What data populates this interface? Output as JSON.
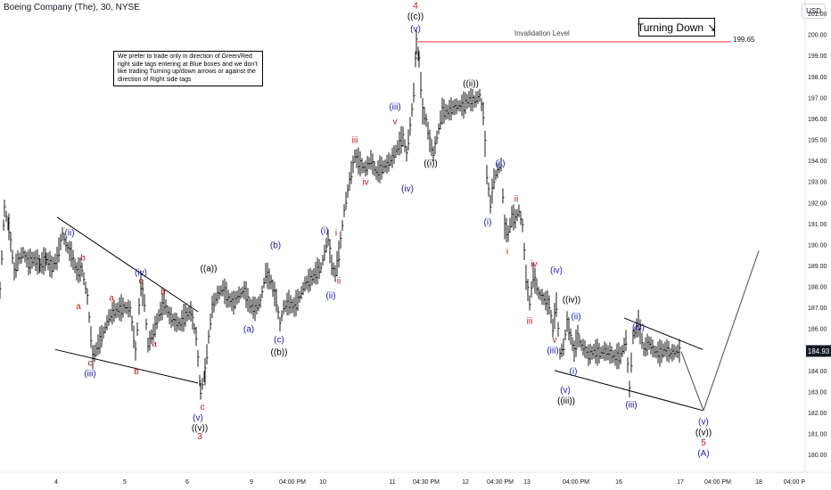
{
  "header": {
    "title": "Boeing Company (The), 30, NYSE"
  },
  "currency": "USD",
  "note": "We prefer to trade only in direction of Green/Red right side tags entering at Blue boxes and we don't like trading Turning up/down arrows or against the direction of Right side tags",
  "badge": {
    "label": "Turning Down",
    "arrow": "↘"
  },
  "invalidation": {
    "label": "Invalidation Level",
    "value": "199.65"
  },
  "colors": {
    "blue": "#1a1aa6",
    "red": "#cc1111",
    "black": "#000000",
    "invalidation": "#e53935",
    "price_tag": "#131722"
  },
  "chart_data": {
    "type": "line",
    "title": "Boeing Company (The), 30, NYSE",
    "ylim": [
      179.5,
      201.3
    ],
    "xlim": [
      0,
      903
    ],
    "y_ticks": [
      "180.00",
      "181.00",
      "182.00",
      "183.00",
      "184.00",
      "185.00",
      "186.00",
      "187.00",
      "188.00",
      "189.00",
      "190.00",
      "191.00",
      "192.00",
      "193.00",
      "194.00",
      "195.00",
      "196.00",
      "197.00",
      "198.00",
      "199.00",
      "200.00",
      "201.00"
    ],
    "x_ticks": [
      {
        "x": 63,
        "label": "4"
      },
      {
        "x": 140,
        "label": "5"
      },
      {
        "x": 210,
        "label": "6"
      },
      {
        "x": 282,
        "label": "9"
      },
      {
        "x": 328,
        "label": "04:00 PM"
      },
      {
        "x": 362,
        "label": "10"
      },
      {
        "x": 440,
        "label": "11"
      },
      {
        "x": 478,
        "label": "04:30 PM"
      },
      {
        "x": 522,
        "label": "12"
      },
      {
        "x": 561,
        "label": "04:30 PM"
      },
      {
        "x": 591,
        "label": "13"
      },
      {
        "x": 646,
        "label": "04:00 PM"
      },
      {
        "x": 694,
        "label": "16"
      },
      {
        "x": 763,
        "label": "17"
      },
      {
        "x": 805,
        "label": "04:00 PM"
      },
      {
        "x": 851,
        "label": "18"
      },
      {
        "x": 891,
        "label": "04:00 P"
      }
    ],
    "last_price": "184.93",
    "last_price_value": 184.93,
    "invalidation_level": 199.65,
    "price_path": [
      [
        0,
        187.8
      ],
      [
        5,
        191.7
      ],
      [
        10,
        190.8
      ],
      [
        16,
        188.7
      ],
      [
        20,
        189.2
      ],
      [
        26,
        189.6
      ],
      [
        32,
        189.1
      ],
      [
        38,
        189.3
      ],
      [
        45,
        189.0
      ],
      [
        52,
        189.3
      ],
      [
        58,
        188.9
      ],
      [
        64,
        189.3
      ],
      [
        70,
        190.5
      ],
      [
        74,
        190.0
      ],
      [
        80,
        189.5
      ],
      [
        86,
        188.7
      ],
      [
        92,
        188.8
      ],
      [
        98,
        187.5
      ],
      [
        104,
        184.6
      ],
      [
        110,
        185.2
      ],
      [
        116,
        185.8
      ],
      [
        122,
        186.5
      ],
      [
        128,
        186.8
      ],
      [
        134,
        186.9
      ],
      [
        140,
        187.0
      ],
      [
        146,
        186.9
      ],
      [
        152,
        184.9
      ],
      [
        158,
        188.1
      ],
      [
        162,
        187.2
      ],
      [
        166,
        185.2
      ],
      [
        172,
        185.8
      ],
      [
        178,
        186.6
      ],
      [
        184,
        187.2
      ],
      [
        190,
        186.6
      ],
      [
        196,
        186.3
      ],
      [
        202,
        186.2
      ],
      [
        208,
        186.6
      ],
      [
        214,
        186.8
      ],
      [
        220,
        185.6
      ],
      [
        225,
        183.0
      ],
      [
        230,
        183.9
      ],
      [
        234,
        185.6
      ],
      [
        238,
        187.0
      ],
      [
        244,
        187.6
      ],
      [
        250,
        187.9
      ],
      [
        256,
        187.4
      ],
      [
        262,
        187.2
      ],
      [
        268,
        187.6
      ],
      [
        274,
        187.8
      ],
      [
        280,
        187.1
      ],
      [
        286,
        186.9
      ],
      [
        292,
        187.3
      ],
      [
        298,
        188.6
      ],
      [
        304,
        188.2
      ],
      [
        310,
        187.3
      ],
      [
        314,
        186.2
      ],
      [
        318,
        187.0
      ],
      [
        324,
        187.2
      ],
      [
        330,
        187.0
      ],
      [
        336,
        187.5
      ],
      [
        342,
        188.1
      ],
      [
        348,
        188.3
      ],
      [
        354,
        188.6
      ],
      [
        360,
        188.9
      ],
      [
        364,
        189.6
      ],
      [
        368,
        190.3
      ],
      [
        372,
        189.0
      ],
      [
        376,
        188.6
      ],
      [
        380,
        189.5
      ],
      [
        386,
        191.6
      ],
      [
        392,
        193.0
      ],
      [
        398,
        194.2
      ],
      [
        404,
        193.8
      ],
      [
        410,
        193.6
      ],
      [
        416,
        194.0
      ],
      [
        422,
        193.4
      ],
      [
        428,
        193.6
      ],
      [
        434,
        193.8
      ],
      [
        440,
        194.1
      ],
      [
        446,
        194.6
      ],
      [
        452,
        195.1
      ],
      [
        456,
        194.3
      ],
      [
        460,
        195.6
      ],
      [
        464,
        197.2
      ],
      [
        467,
        199.6
      ],
      [
        470,
        198.8
      ],
      [
        474,
        196.3
      ],
      [
        478,
        195.9
      ],
      [
        482,
        194.9
      ],
      [
        486,
        194.3
      ],
      [
        490,
        195.1
      ],
      [
        496,
        196.3
      ],
      [
        502,
        196.3
      ],
      [
        508,
        196.5
      ],
      [
        514,
        196.6
      ],
      [
        520,
        196.6
      ],
      [
        526,
        196.9
      ],
      [
        532,
        196.8
      ],
      [
        538,
        197.1
      ],
      [
        542,
        196.2
      ],
      [
        546,
        193.3
      ],
      [
        550,
        191.9
      ],
      [
        554,
        193.1
      ],
      [
        558,
        193.5
      ],
      [
        562,
        193.8
      ],
      [
        566,
        190.8
      ],
      [
        570,
        190.5
      ],
      [
        574,
        191.3
      ],
      [
        578,
        191.2
      ],
      [
        582,
        191.6
      ],
      [
        586,
        190.9
      ],
      [
        590,
        188.4
      ],
      [
        594,
        187.2
      ],
      [
        598,
        188.5
      ],
      [
        604,
        187.7
      ],
      [
        610,
        187.4
      ],
      [
        616,
        187.1
      ],
      [
        620,
        186.0
      ],
      [
        624,
        187.1
      ],
      [
        628,
        184.8
      ],
      [
        632,
        185.1
      ],
      [
        636,
        186.3
      ],
      [
        640,
        185.6
      ],
      [
        644,
        184.9
      ],
      [
        648,
        185.6
      ],
      [
        652,
        185.2
      ],
      [
        656,
        185.0
      ],
      [
        660,
        184.7
      ],
      [
        666,
        184.9
      ],
      [
        672,
        184.8
      ],
      [
        678,
        184.9
      ],
      [
        684,
        184.8
      ],
      [
        690,
        184.6
      ],
      [
        696,
        184.7
      ],
      [
        702,
        185.4
      ],
      [
        706,
        183.1
      ],
      [
        710,
        185.6
      ],
      [
        716,
        186.2
      ],
      [
        722,
        185.0
      ],
      [
        728,
        185.3
      ],
      [
        734,
        184.9
      ],
      [
        740,
        184.8
      ],
      [
        746,
        185.0
      ],
      [
        752,
        184.8
      ],
      [
        758,
        184.9
      ],
      [
        764,
        184.9
      ]
    ],
    "projection_path": [
      [
        764,
        184.9
      ],
      [
        789,
        182.1
      ],
      [
        851,
        189.7
      ]
    ],
    "trendlines": [
      {
        "color": "black",
        "points": [
          [
            64,
            191.3
          ],
          [
            222,
            186.8
          ]
        ]
      },
      {
        "color": "black",
        "points": [
          [
            62,
            185.0
          ],
          [
            222,
            183.4
          ]
        ]
      },
      {
        "color": "black",
        "points": [
          [
            700,
            186.5
          ],
          [
            788,
            185.0
          ]
        ]
      },
      {
        "color": "black",
        "points": [
          [
            622,
            184.0
          ],
          [
            788,
            182.1
          ]
        ]
      }
    ],
    "labels": [
      {
        "text": "(ii)",
        "x": 78,
        "y": 190.6,
        "color": "blue"
      },
      {
        "text": "b",
        "x": 93,
        "y": 189.4,
        "color": "red"
      },
      {
        "text": "a",
        "x": 88,
        "y": 187.1,
        "color": "red"
      },
      {
        "text": "c",
        "x": 101,
        "y": 184.4,
        "color": "red"
      },
      {
        "text": "(iii)",
        "x": 101,
        "y": 183.9,
        "color": "blue"
      },
      {
        "text": "a",
        "x": 125,
        "y": 187.5,
        "color": "red"
      },
      {
        "text": "b",
        "x": 153,
        "y": 184.0,
        "color": "red"
      },
      {
        "text": "(iv)",
        "x": 158,
        "y": 188.7,
        "color": "blue"
      },
      {
        "text": "c",
        "x": 158,
        "y": 188.3,
        "color": "red"
      },
      {
        "text": "b",
        "x": 183,
        "y": 187.8,
        "color": "red"
      },
      {
        "text": "a",
        "x": 173,
        "y": 185.3,
        "color": "red"
      },
      {
        "text": "((a))",
        "x": 234,
        "y": 188.9,
        "color": "black"
      },
      {
        "text": "c",
        "x": 227,
        "y": 182.3,
        "color": "red"
      },
      {
        "text": "(v)",
        "x": 222,
        "y": 181.8,
        "color": "blue"
      },
      {
        "text": "((v))",
        "x": 224,
        "y": 181.3,
        "color": "black"
      },
      {
        "text": "3",
        "x": 224,
        "y": 180.9,
        "color": "red"
      },
      {
        "text": "(a)",
        "x": 279,
        "y": 186.0,
        "color": "blue"
      },
      {
        "text": "(b)",
        "x": 309,
        "y": 190.0,
        "color": "blue"
      },
      {
        "text": "(c)",
        "x": 313,
        "y": 185.5,
        "color": "blue"
      },
      {
        "text": "((b))",
        "x": 313,
        "y": 184.9,
        "color": "black"
      },
      {
        "text": "(i)",
        "x": 364,
        "y": 190.7,
        "color": "blue"
      },
      {
        "text": "i",
        "x": 377,
        "y": 190.6,
        "color": "red"
      },
      {
        "text": "ii",
        "x": 380,
        "y": 188.3,
        "color": "red"
      },
      {
        "text": "(ii)",
        "x": 371,
        "y": 187.6,
        "color": "blue"
      },
      {
        "text": "iii",
        "x": 398,
        "y": 195.0,
        "color": "red"
      },
      {
        "text": "iv",
        "x": 410,
        "y": 193.0,
        "color": "red"
      },
      {
        "text": "(iii)",
        "x": 443,
        "y": 196.6,
        "color": "blue"
      },
      {
        "text": "v",
        "x": 443,
        "y": 195.9,
        "color": "red"
      },
      {
        "text": "(iv)",
        "x": 457,
        "y": 192.7,
        "color": "blue"
      },
      {
        "text": "4",
        "x": 466,
        "y": 201.4,
        "color": "red"
      },
      {
        "text": "((c))",
        "x": 466,
        "y": 200.9,
        "color": "black"
      },
      {
        "text": "(v)",
        "x": 466,
        "y": 200.3,
        "color": "blue"
      },
      {
        "text": "((i))",
        "x": 483,
        "y": 193.9,
        "color": "black"
      },
      {
        "text": "((ii))",
        "x": 528,
        "y": 197.7,
        "color": "black"
      },
      {
        "text": "(i)",
        "x": 547,
        "y": 191.1,
        "color": "blue"
      },
      {
        "text": "(ii)",
        "x": 561,
        "y": 193.9,
        "color": "blue"
      },
      {
        "text": "ii",
        "x": 579,
        "y": 192.2,
        "color": "red"
      },
      {
        "text": "i",
        "x": 569,
        "y": 189.7,
        "color": "red"
      },
      {
        "text": "iv",
        "x": 599,
        "y": 189.1,
        "color": "red"
      },
      {
        "text": "(iv)",
        "x": 624,
        "y": 188.8,
        "color": "blue"
      },
      {
        "text": "((iv))",
        "x": 641,
        "y": 187.4,
        "color": "black"
      },
      {
        "text": "iii",
        "x": 594,
        "y": 186.4,
        "color": "red"
      },
      {
        "text": "(ii)",
        "x": 646,
        "y": 186.6,
        "color": "blue"
      },
      {
        "text": "v",
        "x": 622,
        "y": 185.5,
        "color": "red"
      },
      {
        "text": "(iii)",
        "x": 620,
        "y": 185.0,
        "color": "blue"
      },
      {
        "text": "(i)",
        "x": 643,
        "y": 184.0,
        "color": "blue"
      },
      {
        "text": "(v)",
        "x": 634,
        "y": 183.1,
        "color": "blue"
      },
      {
        "text": "((iii))",
        "x": 635,
        "y": 182.6,
        "color": "black"
      },
      {
        "text": "(iv)",
        "x": 716,
        "y": 186.1,
        "color": "blue"
      },
      {
        "text": "(iii)",
        "x": 708,
        "y": 182.4,
        "color": "blue"
      },
      {
        "text": "(v)",
        "x": 789,
        "y": 181.6,
        "color": "blue"
      },
      {
        "text": "((v))",
        "x": 789,
        "y": 181.1,
        "color": "black"
      },
      {
        "text": "5",
        "x": 789,
        "y": 180.6,
        "color": "red"
      },
      {
        "text": "(A)",
        "x": 789,
        "y": 180.1,
        "color": "blue"
      }
    ]
  }
}
